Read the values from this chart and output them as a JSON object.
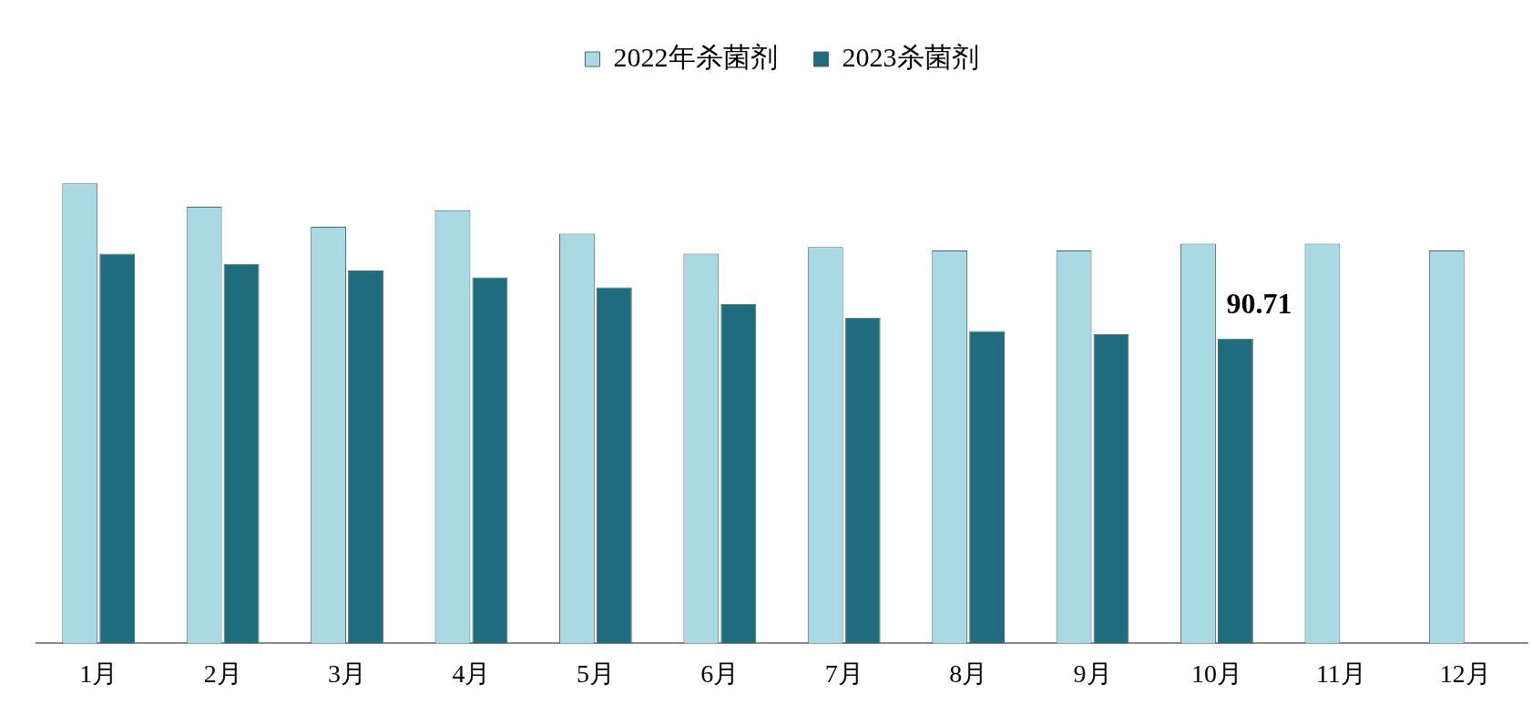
{
  "chart_data": {
    "type": "bar",
    "legend": "top",
    "grid": false,
    "categories": [
      "1月",
      "2月",
      "3月",
      "4月",
      "5月",
      "6月",
      "7月",
      "8月",
      "9月",
      "10月",
      "11月",
      "12月"
    ],
    "series": [
      {
        "name": "2022年杀菌剂",
        "color": "#a9d9e3",
        "values": [
          137,
          130,
          124,
          129,
          122,
          116,
          118,
          117,
          117,
          119,
          119,
          117
        ]
      },
      {
        "name": "2023杀菌剂",
        "color": "#1e6c7e",
        "values": [
          116,
          113,
          111,
          109,
          106,
          101,
          97,
          93,
          92,
          90.71,
          null,
          null
        ],
        "value_labels": [
          null,
          null,
          null,
          null,
          null,
          null,
          null,
          null,
          null,
          "90.71",
          null,
          null
        ]
      }
    ]
  }
}
